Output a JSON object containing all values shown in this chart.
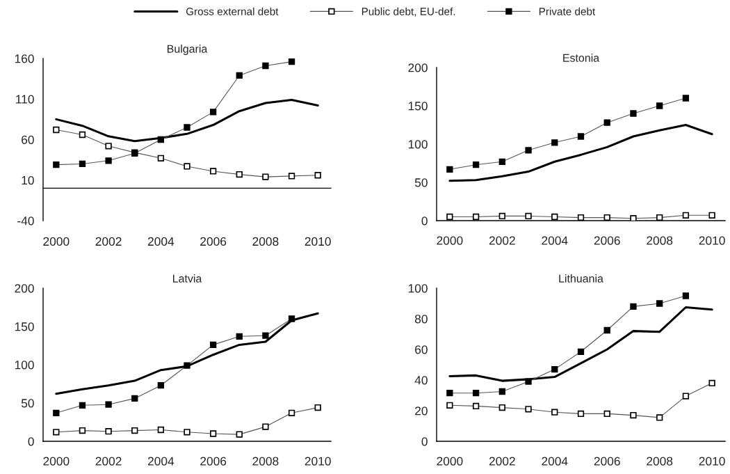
{
  "chart_data": [
    {
      "type": "line",
      "title": "Bulgaria",
      "legend": "top",
      "categories": [
        "2000",
        null,
        "2002",
        null,
        "2004",
        null,
        "2006",
        null,
        "2008",
        null,
        "2010"
      ],
      "ylim": [
        -40,
        160
      ],
      "yticks": [
        -40,
        10,
        60,
        110,
        160
      ],
      "grid": false,
      "series": [
        {
          "name": "Gross external debt",
          "color": "#000000",
          "marker": "none",
          "values": [
            85,
            77,
            64,
            58,
            62,
            67,
            78,
            95,
            105,
            109,
            102
          ]
        },
        {
          "name": "Public debt, EU-def.",
          "color": "#ffffff",
          "marker": "square",
          "values": [
            72,
            66,
            52,
            44,
            37,
            27,
            21,
            17,
            14,
            15,
            16
          ]
        },
        {
          "name": "Private debt",
          "color": "#000000",
          "marker": "square",
          "values": [
            29,
            30,
            34,
            43,
            60,
            75,
            94,
            139,
            151,
            156,
            null
          ]
        }
      ]
    },
    {
      "type": "line",
      "title": "Estonia",
      "categories": [
        "2000",
        null,
        "2002",
        null,
        "2004",
        null,
        "2006",
        null,
        "2008",
        null,
        "2010"
      ],
      "ylim": [
        0,
        200
      ],
      "yticks": [
        0,
        50,
        100,
        150,
        200
      ],
      "grid": false,
      "series": [
        {
          "color": "#000000",
          "marker": "none",
          "values": [
            52,
            53,
            58,
            64,
            77,
            86,
            96,
            110,
            118,
            125,
            113
          ]
        },
        {
          "color": "#ffffff",
          "marker": "square",
          "values": [
            5,
            5,
            6,
            6,
            5,
            4,
            4,
            3,
            4,
            7,
            7
          ]
        },
        {
          "color": "#000000",
          "marker": "square",
          "values": [
            67,
            73,
            77,
            92,
            102,
            110,
            128,
            140,
            150,
            160,
            null
          ]
        }
      ]
    },
    {
      "type": "line",
      "title": "Latvia",
      "categories": [
        "2000",
        null,
        "2002",
        null,
        "2004",
        null,
        "2006",
        null,
        "2008",
        null,
        "2010"
      ],
      "ylim": [
        0,
        200
      ],
      "yticks": [
        0,
        50,
        100,
        150,
        200
      ],
      "grid": false,
      "series": [
        {
          "color": "#000000",
          "marker": "none",
          "values": [
            62,
            68,
            73,
            79,
            93,
            98,
            113,
            126,
            130,
            158,
            167
          ]
        },
        {
          "color": "#ffffff",
          "marker": "square",
          "values": [
            12,
            14,
            13,
            14,
            15,
            12,
            10,
            9,
            19,
            37,
            44
          ]
        },
        {
          "color": "#000000",
          "marker": "square",
          "values": [
            37,
            47,
            48,
            56,
            73,
            99,
            126,
            137,
            138,
            160,
            null
          ]
        }
      ]
    },
    {
      "type": "line",
      "title": "Lithuania",
      "categories": [
        "2000",
        null,
        "2002",
        null,
        "2004",
        null,
        "2006",
        null,
        "2008",
        null,
        "2010"
      ],
      "ylim": [
        0,
        100
      ],
      "yticks": [
        0,
        20,
        40,
        60,
        80,
        100
      ],
      "grid": false,
      "series": [
        {
          "color": "#000000",
          "marker": "none",
          "values": [
            42.5,
            43,
            39.5,
            40.5,
            42,
            51,
            60,
            72,
            71.5,
            87.5,
            86
          ]
        },
        {
          "color": "#ffffff",
          "marker": "square",
          "values": [
            23.5,
            23,
            22,
            21,
            19,
            18,
            18,
            17,
            15.5,
            29.5,
            38
          ]
        },
        {
          "color": "#000000",
          "marker": "square",
          "values": [
            31.5,
            31.5,
            32.5,
            39,
            47,
            58.5,
            72.5,
            88,
            90,
            95,
            null
          ]
        }
      ]
    }
  ]
}
